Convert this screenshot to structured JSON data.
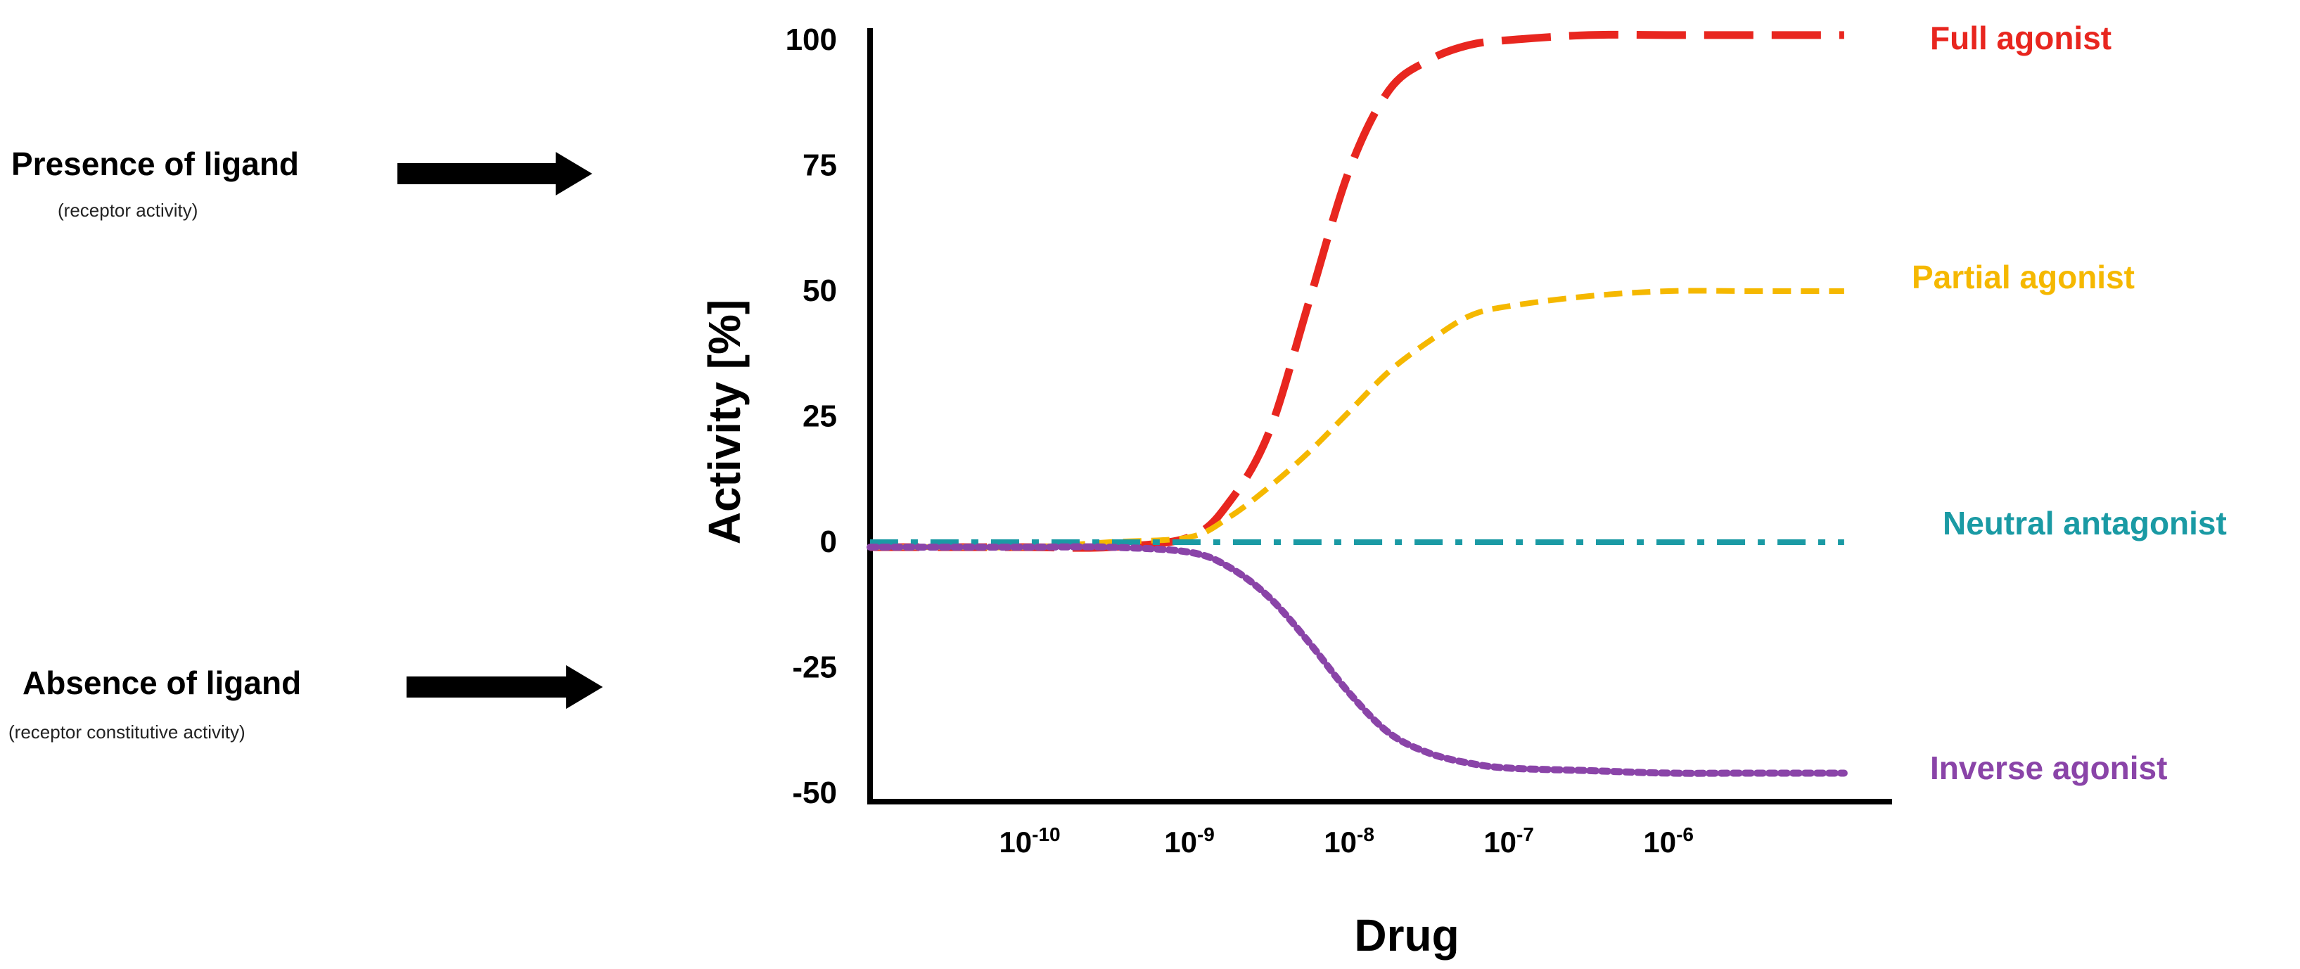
{
  "annotations": {
    "presence": {
      "title": "Presence of ligand",
      "subtitle": "(receptor activity)"
    },
    "absence": {
      "title": "Absence of ligand",
      "subtitle": "(receptor constitutive activity)"
    }
  },
  "chart_data": {
    "type": "line",
    "title": "",
    "xlabel": "Drug",
    "ylabel": "Activity [%]",
    "ylim": [
      -50,
      100
    ],
    "yticks": [
      100,
      75,
      50,
      25,
      0,
      -25,
      -50
    ],
    "xscale": "log10",
    "xlim": [
      -11.0,
      -4.6
    ],
    "xticks": [
      {
        "exponent": -10,
        "base": "10",
        "sup": "-10"
      },
      {
        "exponent": -9,
        "base": "10",
        "sup": "-9"
      },
      {
        "exponent": -8,
        "base": "10",
        "sup": "-8"
      },
      {
        "exponent": -7,
        "base": "10",
        "sup": "-7"
      },
      {
        "exponent": -6,
        "base": "10",
        "sup": "-6"
      }
    ],
    "grid": false,
    "series": [
      {
        "name": "Full agonist",
        "color": "#e8261f",
        "dash": "long-dash",
        "x": [
          -11.0,
          -10.5,
          -10.0,
          -9.5,
          -9.0,
          -8.75,
          -8.5,
          -8.25,
          -8.0,
          -7.75,
          -7.5,
          -7.25,
          -7.0,
          -6.5,
          -6.0,
          -5.5,
          -4.9
        ],
        "y": [
          -1,
          -1,
          -1,
          -1,
          1,
          8,
          22,
          48,
          74,
          90,
          96,
          99,
          100,
          101,
          101,
          101,
          101
        ]
      },
      {
        "name": "Partial agonist",
        "color": "#f5b800",
        "dash": "dash",
        "x": [
          -11.0,
          -10.5,
          -10.0,
          -9.5,
          -9.0,
          -8.75,
          -8.5,
          -8.25,
          -8.0,
          -7.75,
          -7.5,
          -7.25,
          -7.0,
          -6.5,
          -6.0,
          -5.5,
          -4.9
        ],
        "y": [
          -1,
          -1,
          -1,
          0,
          1,
          5,
          11,
          18,
          26,
          34,
          40,
          45,
          47,
          49,
          50,
          50,
          50
        ]
      },
      {
        "name": "Neutral antagonist",
        "color": "#1a9aa4",
        "dash": "dash-dot",
        "x": [
          -11.0,
          -4.9
        ],
        "y": [
          0,
          0
        ]
      },
      {
        "name": "Inverse agonist",
        "color": "#8a44a8",
        "dash": "dot",
        "x": [
          -11.0,
          -10.5,
          -10.0,
          -9.5,
          -9.0,
          -8.75,
          -8.5,
          -8.25,
          -8.0,
          -7.75,
          -7.5,
          -7.25,
          -7.0,
          -6.5,
          -6.0,
          -5.5,
          -4.9
        ],
        "y": [
          -1,
          -1,
          -1,
          -1,
          -2,
          -5,
          -11,
          -20,
          -30,
          -38,
          -42,
          -44,
          -45,
          -45.5,
          -46,
          -46,
          -46
        ]
      }
    ]
  }
}
